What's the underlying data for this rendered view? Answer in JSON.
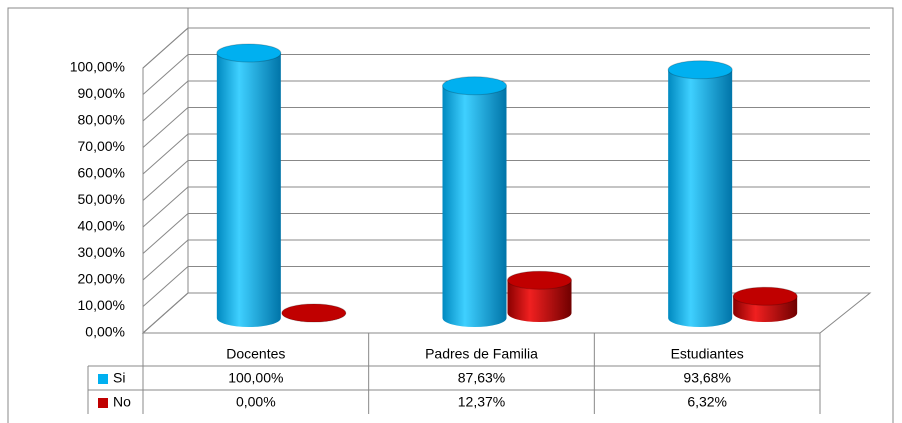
{
  "chart_data": {
    "type": "bar3d",
    "categories": [
      "Docentes",
      "Padres de Familia",
      "Estudiantes"
    ],
    "series": [
      {
        "name": "Si",
        "color": "#00b0f0",
        "values": [
          100,
          87.63,
          93.68
        ],
        "value_labels": [
          "100,00%",
          "87,63%",
          "93,68%"
        ]
      },
      {
        "name": "No",
        "color": "#c00000",
        "values": [
          0,
          12.37,
          6.32
        ],
        "value_labels": [
          "0,00%",
          "12,37%",
          "6,32%"
        ]
      }
    ],
    "ylim": [
      0,
      100
    ],
    "yticks": [
      {
        "value": 0,
        "label": "0,00%"
      },
      {
        "value": 10,
        "label": "10,00%"
      },
      {
        "value": 20,
        "label": "20,00%"
      },
      {
        "value": 30,
        "label": "30,00%"
      },
      {
        "value": 40,
        "label": "40,00%"
      },
      {
        "value": 50,
        "label": "50,00%"
      },
      {
        "value": 60,
        "label": "60,00%"
      },
      {
        "value": 70,
        "label": "70,00%"
      },
      {
        "value": 80,
        "label": "80,00%"
      },
      {
        "value": 90,
        "label": "90,00%"
      },
      {
        "value": 100,
        "label": "100,00%"
      }
    ],
    "grid": true
  }
}
